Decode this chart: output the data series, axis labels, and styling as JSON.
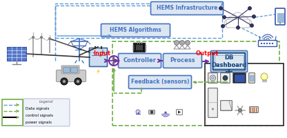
{
  "bg_color": "#ffffff",
  "blue_box_edge": "#4472c4",
  "blue_box_fill": "#dce6f1",
  "green_dash_color": "#70ad47",
  "blue_dash_color": "#5b9bd5",
  "purple_color": "#7030a0",
  "red_text": "#ff0000",
  "dark_blue": "#1f4e79",
  "gray": "#808080",
  "box_labels": {
    "hems_infra": "HEMS Infrastructure",
    "hems_algo": "HEMS Algorithms",
    "controller": "Controller",
    "process": "Process",
    "feedback": "Feedback (sensors)",
    "db_dashboard": "DB\nDashboard"
  },
  "legend_title": "Legend",
  "legend_items": [
    "Data signals",
    "control signals",
    "power signals"
  ],
  "input_label": "Input",
  "output_label": "Output"
}
